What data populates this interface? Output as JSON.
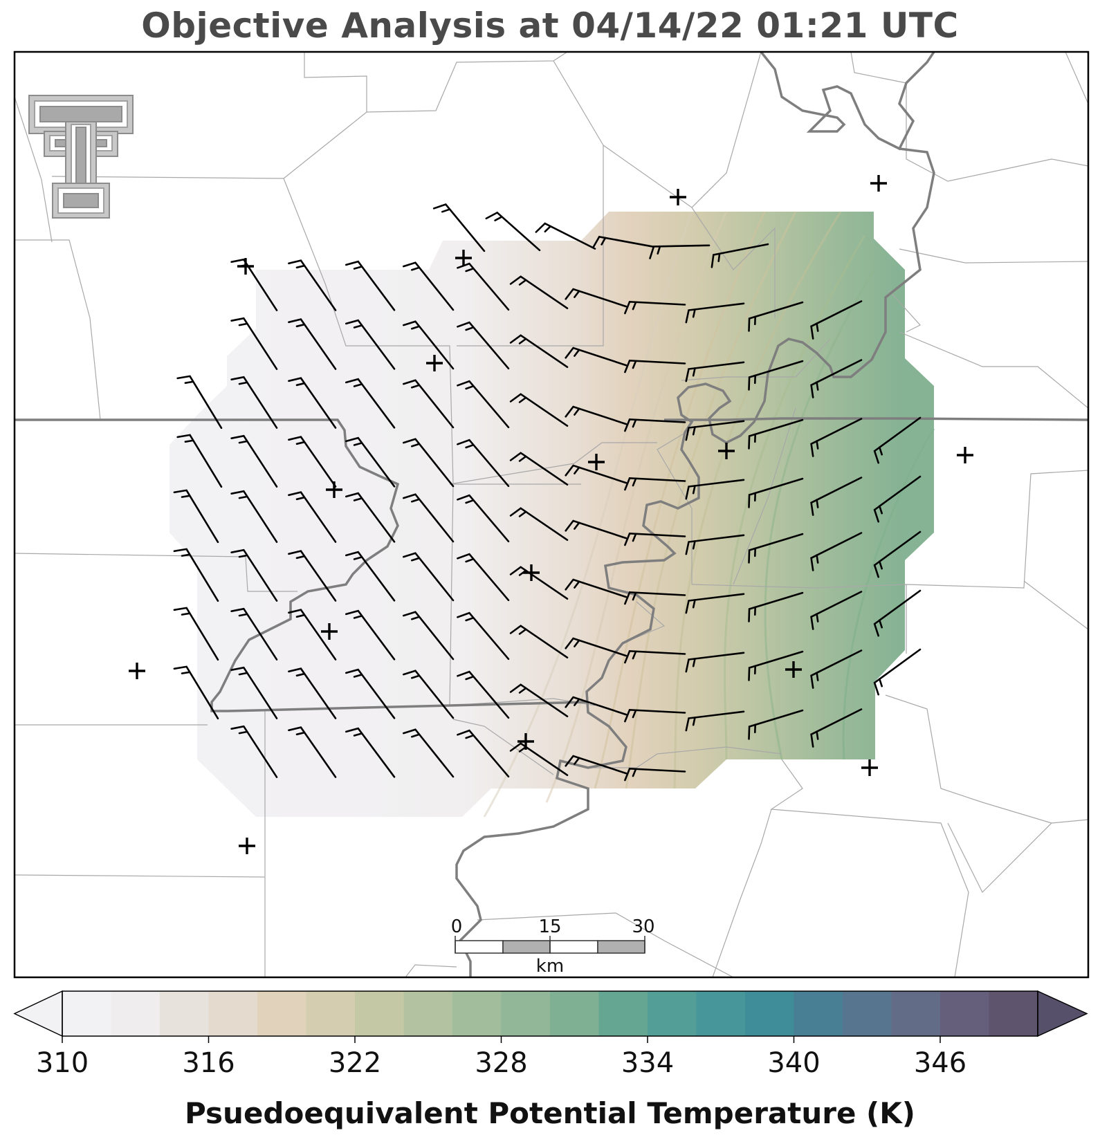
{
  "title": "Objective Analysis at 04/14/22 01:21 UTC",
  "colorbar": {
    "label": "Psuedoequivalent Potential Temperature (K)",
    "min": 310,
    "max": 350,
    "step": 2,
    "extend": "both",
    "ticks": [
      {
        "value": 310,
        "label": "310"
      },
      {
        "value": 316,
        "label": "316"
      },
      {
        "value": 322,
        "label": "322"
      },
      {
        "value": 328,
        "label": "328"
      },
      {
        "value": 334,
        "label": "334"
      },
      {
        "value": 340,
        "label": "340"
      },
      {
        "value": 346,
        "label": "346"
      }
    ],
    "colors": [
      "#f2f1f4",
      "#efedee",
      "#e8e2dd",
      "#e4dace",
      "#e0d2bb",
      "#d5cdb0",
      "#c4c8a4",
      "#b3c3a2",
      "#a1bd9c",
      "#91b698",
      "#7fb093",
      "#64a691",
      "#539f97",
      "#47979a",
      "#3f8d99",
      "#487f95",
      "#587590",
      "#626c87",
      "#665f7b",
      "#5f546d"
    ],
    "under_color": "#f2f1f4",
    "over_color": "#57506a"
  },
  "scale_bar": {
    "labels": [
      "0",
      "15",
      "30"
    ],
    "unit": "km"
  },
  "logo": "texas-tech-double-t-logo",
  "colors": {
    "frame": "#000000",
    "state_border": "#7a7a7a",
    "county_line": "#aaaaaa",
    "river": "#8a8a8a",
    "barb": "#000000"
  }
}
